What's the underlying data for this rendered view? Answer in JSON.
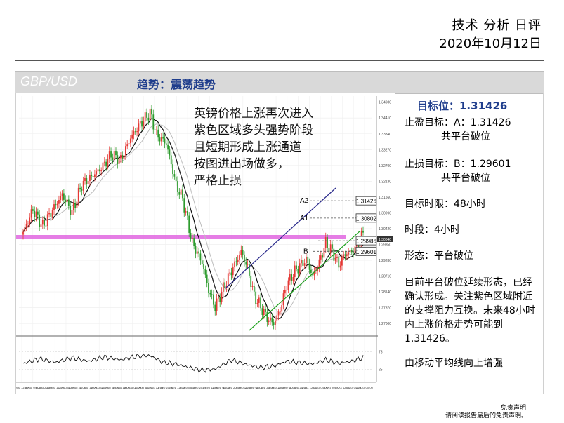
{
  "header": {
    "title": "技术 分析 日评",
    "date": "2020年10月12日"
  },
  "band": {
    "pair": "GBP/USD",
    "trend": "趋势：震荡趋势"
  },
  "annotation": [
    "英镑价格上涨再次进入",
    "紫色区域多头强势阶段",
    "且短期形成上涨通道",
    "按图进出场做多，",
    "严格止损"
  ],
  "right_panel": {
    "target": "目标位：1.31426",
    "take_profit": [
      "止盈目标：A：1.31426",
      "共平台破位"
    ],
    "stop_loss": [
      "止损目标：B：1.29601",
      "共平台破位"
    ],
    "horizon": "目标时限：48小时",
    "timeframe": "时段：4小时",
    "pattern": "形态：平台破位",
    "analysis": [
      "目前平台破位延续形态，已经",
      "确认形成。关注紫色区域附近",
      "的支撑阻力互换。未来48小时",
      "内上涨价格走势可能到",
      "1.31426。"
    ],
    "note": "由移动平均线向上增强"
  },
  "footer": {
    "line1": "免责声明",
    "line2": "请阅读报告最后的免责声明。"
  },
  "colors": {
    "up": "#e53935",
    "down": "#2e9b2e",
    "purple": "#e066e0",
    "blue_channel": "#2b2b8c",
    "green_channel": "#1aa01a",
    "band_text": "#1f3d8c"
  },
  "chart_data": {
    "type": "candlestick",
    "symbol": "GBP/USD",
    "interval": "4小时",
    "y_ticks": [
      "1.34980",
      "1.34410",
      "1.33840",
      "1.33270",
      "1.32700",
      "1.32130",
      "1.31560",
      "1.30990",
      "1.30420",
      "1.29850",
      "1.29280",
      "1.28710",
      "1.28140",
      "1.27570",
      "1.27000"
    ],
    "y_range": [
      1.267,
      1.352
    ],
    "x_ticks": [
      "Aug 12:00",
      "5 Aug 04:00",
      "6 Aug 20:00",
      "10 Aug 12:00",
      "12 Aug 04:00",
      "13 Aug 20:00",
      "17 Aug 12:00",
      "19 Aug 04:00",
      "20 Aug 20:00",
      "24 Aug 12:00",
      "26 Aug 04:00",
      "27 Aug 20:00",
      "31 Aug 12:00",
      "1 Sep 20:00",
      "4 Sep 12:00",
      "8 Sep 04:00",
      "9 Sep 20:00",
      "11 Sep 12:00",
      "15 Sep 04:00",
      "16 Sep 20:00",
      "18 Sep 12:00",
      "22 Sep 04:00",
      "23 Sep 20:00",
      "25 Sep 12:00",
      "29 Sep 04:00",
      "30 Sep 20:00",
      "2 Oct 12:00",
      "5 Oct 04:00",
      "6 Oct 20:00",
      "8 Oct 12:00",
      "9 Oct 04:00",
      "12 Oct 00:00"
    ],
    "levels": [
      {
        "name": "A2",
        "value": 1.31426,
        "label": "1.31426"
      },
      {
        "name": "A1",
        "value": 1.30802,
        "label": "1.30802"
      },
      {
        "name": "",
        "value": 1.29986,
        "label": "1.29986"
      },
      {
        "name": "B",
        "value": 1.29601,
        "label": "1.29601"
      }
    ],
    "last_price": "1.30040",
    "support_zone": 1.2998,
    "anchors": [
      [
        0,
        1.303
      ],
      [
        6,
        1.311
      ],
      [
        12,
        1.305
      ],
      [
        18,
        1.311
      ],
      [
        24,
        1.3165
      ],
      [
        30,
        1.31
      ],
      [
        36,
        1.32
      ],
      [
        42,
        1.323
      ],
      [
        48,
        1.326
      ],
      [
        54,
        1.331
      ],
      [
        60,
        1.329
      ],
      [
        66,
        1.337
      ],
      [
        72,
        1.342
      ],
      [
        78,
        1.346
      ],
      [
        82,
        1.338
      ],
      [
        88,
        1.335
      ],
      [
        94,
        1.32
      ],
      [
        98,
        1.315
      ],
      [
        104,
        1.299
      ],
      [
        110,
        1.292
      ],
      [
        114,
        1.282
      ],
      [
        118,
        1.276
      ],
      [
        124,
        1.284
      ],
      [
        128,
        1.289
      ],
      [
        134,
        1.296
      ],
      [
        138,
        1.29
      ],
      [
        142,
        1.28
      ],
      [
        146,
        1.276
      ],
      [
        150,
        1.272
      ],
      [
        154,
        1.27
      ],
      [
        158,
        1.275
      ],
      [
        162,
        1.284
      ],
      [
        166,
        1.288
      ],
      [
        170,
        1.291
      ],
      [
        174,
        1.293
      ],
      [
        178,
        1.287
      ],
      [
        182,
        1.292
      ],
      [
        186,
        1.299
      ],
      [
        190,
        1.296
      ],
      [
        194,
        1.291
      ],
      [
        198,
        1.295
      ],
      [
        202,
        1.296
      ],
      [
        206,
        1.298
      ],
      [
        209,
        1.303
      ]
    ],
    "rsi": {
      "range": [
        0,
        100
      ],
      "ticks": [
        "75",
        "25"
      ],
      "anchors": [
        [
          0,
          42
        ],
        [
          10,
          55
        ],
        [
          20,
          45
        ],
        [
          30,
          58
        ],
        [
          40,
          48
        ],
        [
          50,
          60
        ],
        [
          60,
          52
        ],
        [
          70,
          62
        ],
        [
          78,
          64
        ],
        [
          86,
          45
        ],
        [
          94,
          40
        ],
        [
          104,
          28
        ],
        [
          110,
          22
        ],
        [
          118,
          26
        ],
        [
          128,
          52
        ],
        [
          136,
          40
        ],
        [
          146,
          30
        ],
        [
          154,
          34
        ],
        [
          162,
          48
        ],
        [
          170,
          44
        ],
        [
          178,
          40
        ],
        [
          186,
          52
        ],
        [
          194,
          42
        ],
        [
          202,
          48
        ],
        [
          209,
          58
        ]
      ]
    }
  }
}
